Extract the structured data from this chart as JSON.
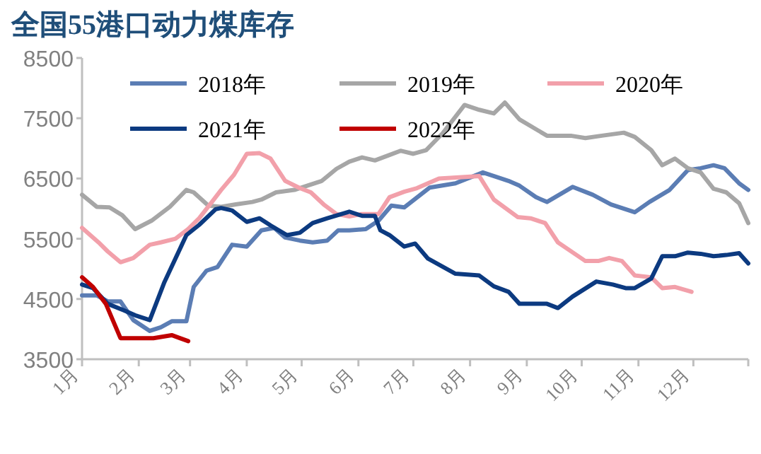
{
  "chart_data": {
    "type": "line",
    "title": "全国55港口动力煤库存",
    "xlim": [
      "--01-01",
      "--12-31"
    ],
    "xticks": [
      {
        "value": "--01-01",
        "label": "1月"
      },
      {
        "value": "--02-01",
        "label": "2月"
      },
      {
        "value": "--03-01",
        "label": "3月"
      },
      {
        "value": "--04-01",
        "label": "4月"
      },
      {
        "value": "--05-01",
        "label": "5月"
      },
      {
        "value": "--06-01",
        "label": "6月"
      },
      {
        "value": "--07-01",
        "label": "7月"
      },
      {
        "value": "--08-01",
        "label": "8月"
      },
      {
        "value": "--09-01",
        "label": "9月"
      },
      {
        "value": "--10-01",
        "label": "10月"
      },
      {
        "value": "--11-01",
        "label": "11月"
      },
      {
        "value": "--12-01",
        "label": "12月"
      },
      {
        "value": "--12-31",
        "label": null
      }
    ],
    "ylim": [
      3500,
      8500
    ],
    "yticks": [
      3500,
      4500,
      5500,
      6500,
      7500,
      8500
    ],
    "grid": false,
    "legend": "top",
    "line_style": "solid",
    "series": [
      {
        "name": "2018年",
        "color": "#5b7db4",
        "x": [
          "--01-01",
          "--01-09",
          "--01-15",
          "--01-22",
          "--01-29",
          "--02-07",
          "--02-13",
          "--02-19",
          "--02-27",
          "--03-03",
          "--03-10",
          "--03-16",
          "--03-24",
          "--04-01",
          "--04-09",
          "--04-16",
          "--04-22",
          "--04-30",
          "--05-07",
          "--05-15",
          "--05-21",
          "--05-27",
          "--06-05",
          "--06-12",
          "--06-19",
          "--06-26",
          "--07-10",
          "--07-24",
          "--08-08",
          "--08-22",
          "--08-28",
          "--09-06",
          "--09-12",
          "--09-26",
          "--10-07",
          "--10-17",
          "--10-30",
          "--11-07",
          "--11-18",
          "--11-28",
          "--12-05",
          "--12-12",
          "--12-18",
          "--12-26",
          "--12-31"
        ],
        "values": [
          4560,
          4560,
          4460,
          4460,
          4150,
          3970,
          4030,
          4130,
          4130,
          4700,
          4970,
          5030,
          5400,
          5370,
          5640,
          5680,
          5520,
          5470,
          5440,
          5470,
          5640,
          5640,
          5660,
          5800,
          6050,
          6020,
          6350,
          6420,
          6600,
          6460,
          6380,
          6190,
          6110,
          6360,
          6230,
          6070,
          5940,
          6110,
          6310,
          6640,
          6670,
          6720,
          6670,
          6420,
          6310
        ]
      },
      {
        "name": "2019年",
        "color": "#a6a6a6",
        "x": [
          "--01-01",
          "--01-09",
          "--01-16",
          "--01-23",
          "--01-30",
          "--02-08",
          "--02-18",
          "--02-27",
          "--03-03",
          "--03-11",
          "--03-18",
          "--03-26",
          "--04-04",
          "--04-09",
          "--04-17",
          "--04-27",
          "--05-04",
          "--05-12",
          "--05-20",
          "--05-27",
          "--06-03",
          "--06-10",
          "--06-18",
          "--06-24",
          "--07-01",
          "--07-08",
          "--07-17",
          "--07-29",
          "--08-06",
          "--08-14",
          "--08-20",
          "--08-28",
          "--09-12",
          "--09-25",
          "--10-03",
          "--10-12",
          "--10-24",
          "--10-30",
          "--11-08",
          "--11-14",
          "--11-21",
          "--11-28",
          "--12-05",
          "--12-12",
          "--12-19",
          "--12-26",
          "--12-31"
        ],
        "values": [
          6230,
          6030,
          6020,
          5890,
          5660,
          5800,
          6030,
          6310,
          6270,
          6050,
          6030,
          6070,
          6110,
          6150,
          6270,
          6310,
          6380,
          6460,
          6660,
          6780,
          6850,
          6800,
          6890,
          6960,
          6910,
          6970,
          7250,
          7720,
          7640,
          7580,
          7760,
          7480,
          7210,
          7210,
          7170,
          7210,
          7260,
          7190,
          6970,
          6720,
          6830,
          6670,
          6600,
          6330,
          6270,
          6090,
          5760
        ]
      },
      {
        "name": "2020年",
        "color": "#f2a0aa",
        "x": [
          "--01-01",
          "--01-10",
          "--01-15",
          "--01-22",
          "--01-29",
          "--02-07",
          "--02-13",
          "--02-21",
          "--02-28",
          "--03-06",
          "--03-14",
          "--03-18",
          "--03-25",
          "--04-01",
          "--04-08",
          "--04-14",
          "--04-22",
          "--04-30",
          "--05-06",
          "--05-13",
          "--05-20",
          "--05-27",
          "--06-03",
          "--06-12",
          "--06-18",
          "--06-26",
          "--07-03",
          "--07-15",
          "--07-26",
          "--08-06",
          "--08-14",
          "--08-27",
          "--09-03",
          "--09-11",
          "--09-18",
          "--10-03",
          "--10-10",
          "--10-16",
          "--10-23",
          "--10-30",
          "--11-08",
          "--11-14",
          "--11-21",
          "--11-30"
        ],
        "values": [
          5680,
          5440,
          5290,
          5110,
          5180,
          5400,
          5440,
          5500,
          5660,
          5840,
          6150,
          6310,
          6560,
          6910,
          6920,
          6830,
          6460,
          6340,
          6270,
          6070,
          5910,
          5870,
          5910,
          5910,
          6190,
          6280,
          6340,
          6500,
          6520,
          6540,
          6150,
          5860,
          5840,
          5760,
          5440,
          5130,
          5130,
          5180,
          5130,
          4890,
          4860,
          4680,
          4700,
          4620
        ]
      },
      {
        "name": "2021年",
        "color": "#0c3a80",
        "x": [
          "--01-01",
          "--01-07",
          "--01-15",
          "--01-24",
          "--01-30",
          "--02-07",
          "--02-15",
          "--02-27",
          "--03-06",
          "--03-15",
          "--03-18",
          "--03-24",
          "--04-01",
          "--04-08",
          "--04-14",
          "--04-23",
          "--04-30",
          "--05-07",
          "--05-15",
          "--05-27",
          "--06-03",
          "--06-10",
          "--06-13",
          "--06-18",
          "--06-26",
          "--07-02",
          "--07-09",
          "--07-24",
          "--08-06",
          "--08-14",
          "--08-22",
          "--08-28",
          "--09-12",
          "--09-18",
          "--09-26",
          "--10-09",
          "--10-18",
          "--10-25",
          "--10-30",
          "--11-08",
          "--11-14",
          "--11-21",
          "--11-28",
          "--12-05",
          "--12-12",
          "--12-19",
          "--12-26",
          "--12-31"
        ],
        "values": [
          4740,
          4680,
          4420,
          4310,
          4230,
          4150,
          4780,
          5560,
          5730,
          5990,
          6010,
          5970,
          5780,
          5840,
          5720,
          5560,
          5600,
          5760,
          5840,
          5950,
          5880,
          5880,
          5640,
          5560,
          5370,
          5420,
          5170,
          4920,
          4890,
          4710,
          4620,
          4420,
          4420,
          4350,
          4540,
          4790,
          4740,
          4680,
          4680,
          4840,
          5210,
          5210,
          5270,
          5250,
          5210,
          5230,
          5260,
          5090
        ]
      },
      {
        "name": "2022年",
        "color": "#c00000",
        "x": [
          "--01-01",
          "--01-07",
          "--01-14",
          "--01-22",
          "--01-30",
          "--02-09",
          "--02-19",
          "--02-28"
        ],
        "values": [
          4860,
          4700,
          4420,
          3850,
          3850,
          3850,
          3900,
          3800
        ]
      }
    ]
  }
}
